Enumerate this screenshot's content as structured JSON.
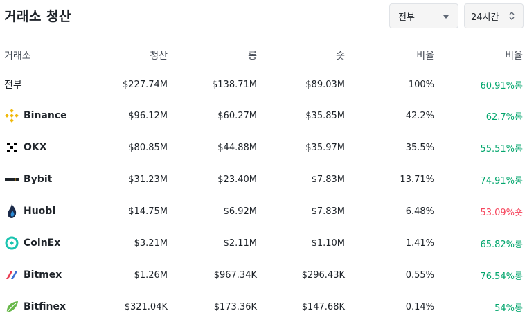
{
  "title": "거래소 청산",
  "controls": {
    "exchange_select": "전부",
    "time_select": "24시간"
  },
  "colors": {
    "long": "#03a66d",
    "short": "#f6465d"
  },
  "table": {
    "headers": [
      "거래소",
      "청산",
      "롱",
      "숏",
      "비율",
      "비율"
    ],
    "rows": [
      {
        "exchange": "전부",
        "icon": null,
        "total": "$227.74M",
        "long": "$138.71M",
        "short": "$89.03M",
        "ratio": "100%",
        "side_ratio": "60.91%롱",
        "side": "long"
      },
      {
        "exchange": "Binance",
        "icon": "binance-icon",
        "total": "$96.12M",
        "long": "$60.27M",
        "short": "$35.85M",
        "ratio": "42.2%",
        "side_ratio": "62.7%롱",
        "side": "long"
      },
      {
        "exchange": "OKX",
        "icon": "okx-icon",
        "total": "$80.85M",
        "long": "$44.88M",
        "short": "$35.97M",
        "ratio": "35.5%",
        "side_ratio": "55.51%롱",
        "side": "long"
      },
      {
        "exchange": "Bybit",
        "icon": "bybit-icon",
        "total": "$31.23M",
        "long": "$23.40M",
        "short": "$7.83M",
        "ratio": "13.71%",
        "side_ratio": "74.91%롱",
        "side": "long"
      },
      {
        "exchange": "Huobi",
        "icon": "huobi-icon",
        "total": "$14.75M",
        "long": "$6.92M",
        "short": "$7.83M",
        "ratio": "6.48%",
        "side_ratio": "53.09%숏",
        "side": "short"
      },
      {
        "exchange": "CoinEx",
        "icon": "coinex-icon",
        "total": "$3.21M",
        "long": "$2.11M",
        "short": "$1.10M",
        "ratio": "1.41%",
        "side_ratio": "65.82%롱",
        "side": "long"
      },
      {
        "exchange": "Bitmex",
        "icon": "bitmex-icon",
        "total": "$1.26M",
        "long": "$967.34K",
        "short": "$296.43K",
        "ratio": "0.55%",
        "side_ratio": "76.54%롱",
        "side": "long"
      },
      {
        "exchange": "Bitfinex",
        "icon": "bitfinex-icon",
        "total": "$321.04K",
        "long": "$173.36K",
        "short": "$147.68K",
        "ratio": "0.14%",
        "side_ratio": "54%롱",
        "side": "long"
      }
    ]
  }
}
